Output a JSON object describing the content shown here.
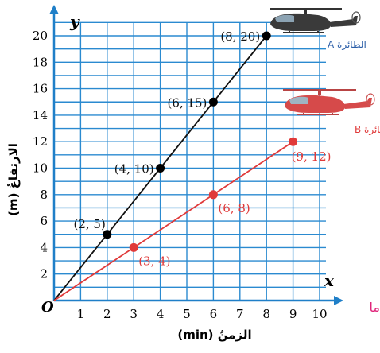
{
  "chart_data": {
    "type": "line",
    "x_var": "x",
    "y_var": "y",
    "origin_label": "O",
    "xlabel": "الزمنُ (min)",
    "ylabel": "الارتفاعُ (m)",
    "xlim": [
      0,
      10
    ],
    "ylim": [
      0,
      21
    ],
    "x_ticks": [
      1,
      2,
      3,
      4,
      5,
      6,
      7,
      8,
      9,
      10
    ],
    "y_ticks": [
      2,
      4,
      6,
      8,
      10,
      12,
      14,
      16,
      18,
      20
    ],
    "grid": true,
    "series": [
      {
        "name": "الطائرة A",
        "color": "#111111",
        "points": [
          {
            "x": 2,
            "y": 5,
            "label": "(2, 5)"
          },
          {
            "x": 4,
            "y": 10,
            "label": "(4, 10)"
          },
          {
            "x": 6,
            "y": 15,
            "label": "(6, 15)"
          },
          {
            "x": 8,
            "y": 20,
            "label": "(8, 20)"
          }
        ]
      },
      {
        "name": "الطائرة B",
        "color": "#e03a3a",
        "points": [
          {
            "x": 3,
            "y": 4,
            "label": "(3, 4)"
          },
          {
            "x": 6,
            "y": 8,
            "label": "(6, 8)"
          },
          {
            "x": 9,
            "y": 12,
            "label": "(9, 12)"
          }
        ]
      }
    ]
  },
  "colors": {
    "grid": "#2a8ad0",
    "axis": "#1f7fc8",
    "line_a": "#111111",
    "line_b": "#e03a3a",
    "edge_text": "#e0247a"
  },
  "icons": [
    "helicopter-a-icon",
    "helicopter-b-icon"
  ],
  "edge_fragment": "ما"
}
